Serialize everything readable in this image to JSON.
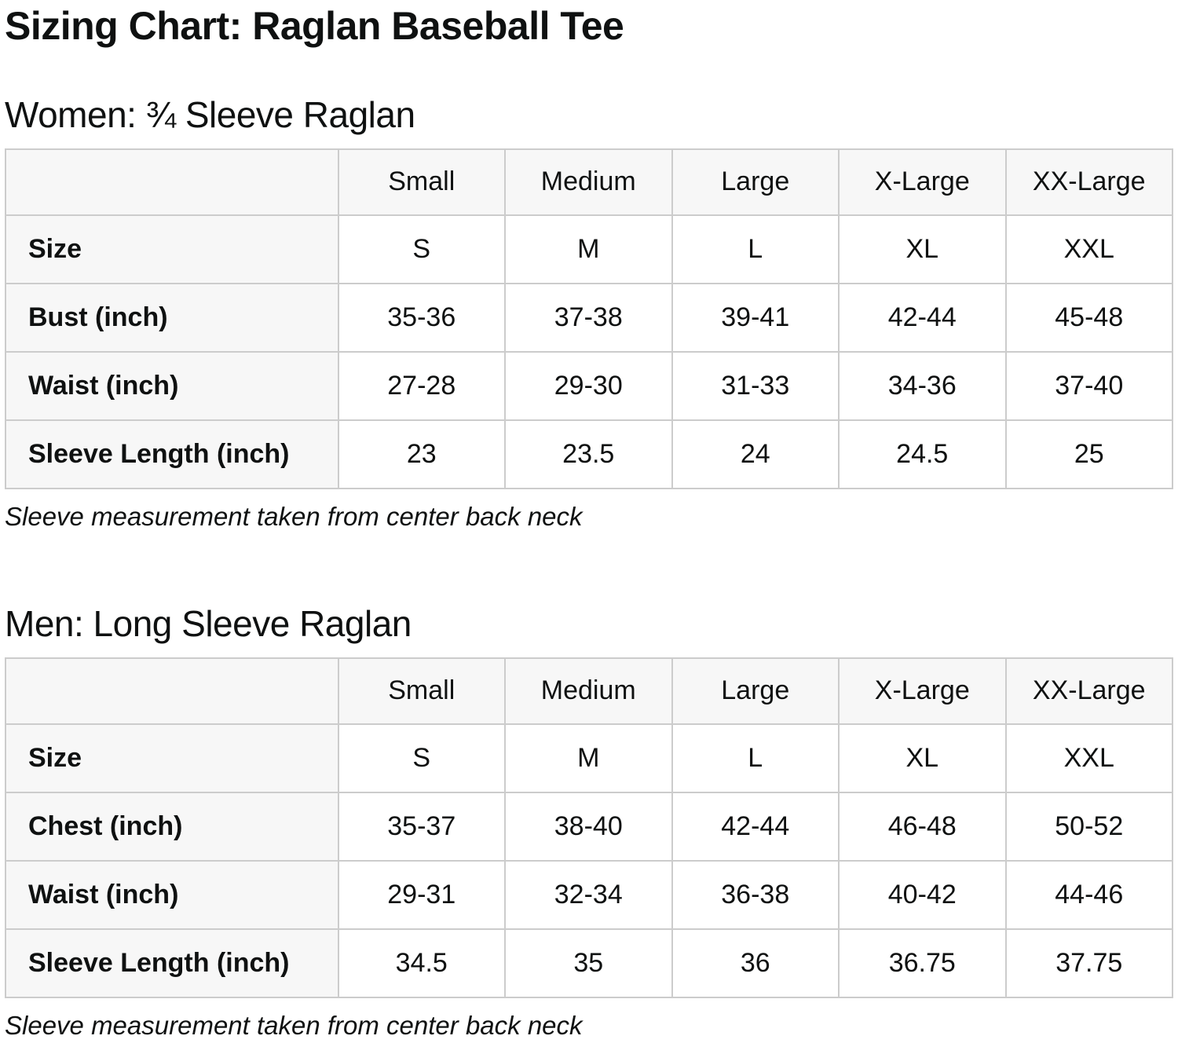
{
  "page": {
    "title": "Sizing Chart: Raglan Baseball Tee"
  },
  "colors": {
    "header_bg": "#f7f7f7",
    "border": "#cccccc",
    "text": "#0f1111"
  },
  "sections": [
    {
      "heading": "Women: ¾ Sleeve Raglan",
      "note": "Sleeve measurement taken from center back neck",
      "table": {
        "columns": [
          "",
          "Small",
          "Medium",
          "Large",
          "X-Large",
          "XX-Large"
        ],
        "rows": [
          {
            "label": "Size",
            "values": [
              "S",
              "M",
              "L",
              "XL",
              "XXL"
            ]
          },
          {
            "label": "Bust (inch)",
            "values": [
              "35-36",
              "37-38",
              "39-41",
              "42-44",
              "45-48"
            ]
          },
          {
            "label": "Waist (inch)",
            "values": [
              "27-28",
              "29-30",
              "31-33",
              "34-36",
              "37-40"
            ]
          },
          {
            "label": "Sleeve Length (inch)",
            "values": [
              "23",
              "23.5",
              "24",
              "24.5",
              "25"
            ]
          }
        ]
      }
    },
    {
      "heading": "Men: Long Sleeve Raglan",
      "note": "Sleeve measurement taken from center back neck",
      "table": {
        "columns": [
          "",
          "Small",
          "Medium",
          "Large",
          "X-Large",
          "XX-Large"
        ],
        "rows": [
          {
            "label": "Size",
            "values": [
              "S",
              "M",
              "L",
              "XL",
              "XXL"
            ]
          },
          {
            "label": "Chest (inch)",
            "values": [
              "35-37",
              "38-40",
              "42-44",
              "46-48",
              "50-52"
            ]
          },
          {
            "label": "Waist (inch)",
            "values": [
              "29-31",
              "32-34",
              "36-38",
              "40-42",
              "44-46"
            ]
          },
          {
            "label": "Sleeve Length (inch)",
            "values": [
              "34.5",
              "35",
              "36",
              "36.75",
              "37.75"
            ]
          }
        ]
      }
    }
  ]
}
